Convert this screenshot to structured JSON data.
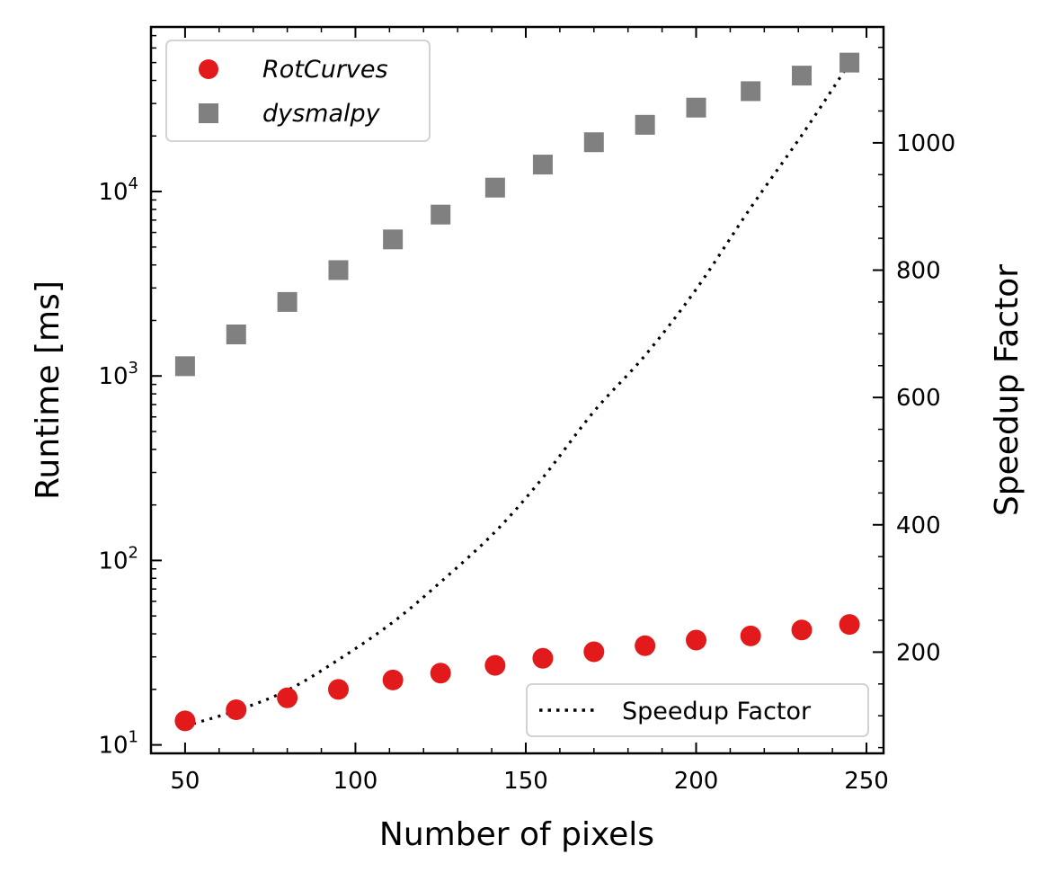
{
  "chart_data": {
    "type": "scatter",
    "x": [
      50,
      65,
      80,
      95,
      111,
      125,
      141,
      155,
      170,
      185,
      200,
      216,
      231,
      245
    ],
    "series": [
      {
        "name": "RotCurves",
        "axis": "left",
        "marker": "circle",
        "color": "#e31a1c",
        "values": [
          13.5,
          15.5,
          18,
          20,
          22.5,
          24.5,
          27,
          29.5,
          32,
          34.5,
          37,
          39,
          42,
          45
        ]
      },
      {
        "name": "dysmalpy",
        "axis": "left",
        "marker": "square",
        "color": "#808080",
        "values": [
          1130,
          1680,
          2520,
          3750,
          5500,
          7500,
          10500,
          14000,
          18500,
          23000,
          28500,
          35000,
          42500,
          50000
        ]
      },
      {
        "name": "Speedup Factor",
        "axis": "right",
        "type": "line",
        "style": "dotted",
        "color": "#000000",
        "values": [
          84,
          108,
          140,
          188,
          247,
          310,
          389,
          474,
          578,
          666,
          770,
          898,
          1012,
          1125
        ]
      }
    ],
    "xlabel": "Number of pixels",
    "ylabel_left": "Runtime [ms]",
    "ylabel_right": "Speedup Factor",
    "xlim": [
      40,
      255
    ],
    "ylim_left": [
      9,
      78000
    ],
    "ylim_right": [
      41,
      1182
    ],
    "yscale_left": "log",
    "x_ticks": [
      50,
      100,
      150,
      200,
      250
    ],
    "x_tick_labels": [
      "50",
      "100",
      "150",
      "200",
      "250"
    ],
    "y_left_ticks": [
      10,
      100,
      1000,
      10000
    ],
    "y_left_tick_labels": [
      {
        "base": "10",
        "exp": "1"
      },
      {
        "base": "10",
        "exp": "2"
      },
      {
        "base": "10",
        "exp": "3"
      },
      {
        "base": "10",
        "exp": "4"
      }
    ],
    "y_right_ticks": [
      200,
      400,
      600,
      800,
      1000
    ],
    "y_right_tick_labels": [
      "200",
      "400",
      "600",
      "800",
      "1000"
    ],
    "legend_main": {
      "position": "top-left",
      "entries": [
        "RotCurves",
        "dysmalpy"
      ]
    },
    "legend_line": {
      "position": "bottom-right",
      "entries": [
        "Speedup Factor"
      ]
    },
    "grid": false
  }
}
